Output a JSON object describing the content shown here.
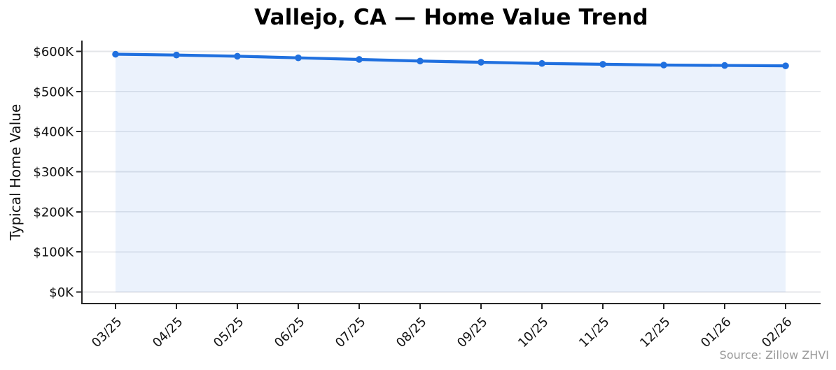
{
  "chart_data": {
    "type": "line",
    "title": "Vallejo, CA — Home Value Trend",
    "ylabel": "Typical Home Value",
    "xlabel": "",
    "categories": [
      "03/25",
      "04/25",
      "05/25",
      "06/25",
      "07/25",
      "08/25",
      "09/25",
      "10/25",
      "11/25",
      "12/25",
      "01/26",
      "02/26"
    ],
    "series": [
      {
        "name": "Typical Home Value",
        "unit": "USD thousands",
        "values": [
          593,
          591,
          588,
          584,
          580,
          576,
          573,
          570,
          568,
          566,
          565,
          564
        ]
      }
    ],
    "yticks": [
      0,
      100,
      200,
      300,
      400,
      500,
      600
    ],
    "ytick_labels": [
      "$0K",
      "$100K",
      "$200K",
      "$300K",
      "$400K",
      "$500K",
      "$600K"
    ],
    "ylim": [
      0,
      600
    ],
    "grid": true,
    "legend": "none",
    "area_fill": true,
    "marker": "circle",
    "xtick_rotation": 45,
    "source_note": "Source: Zillow ZHVI"
  },
  "colors": {
    "line": "#2070df",
    "marker": "#2070df",
    "area_fill_rgba": "rgba(32,112,223,0.09)",
    "grid": "#e4e6e9",
    "axis": "#262626",
    "text": "#111111",
    "muted_text": "#9a9a9a",
    "background": "#ffffff"
  }
}
